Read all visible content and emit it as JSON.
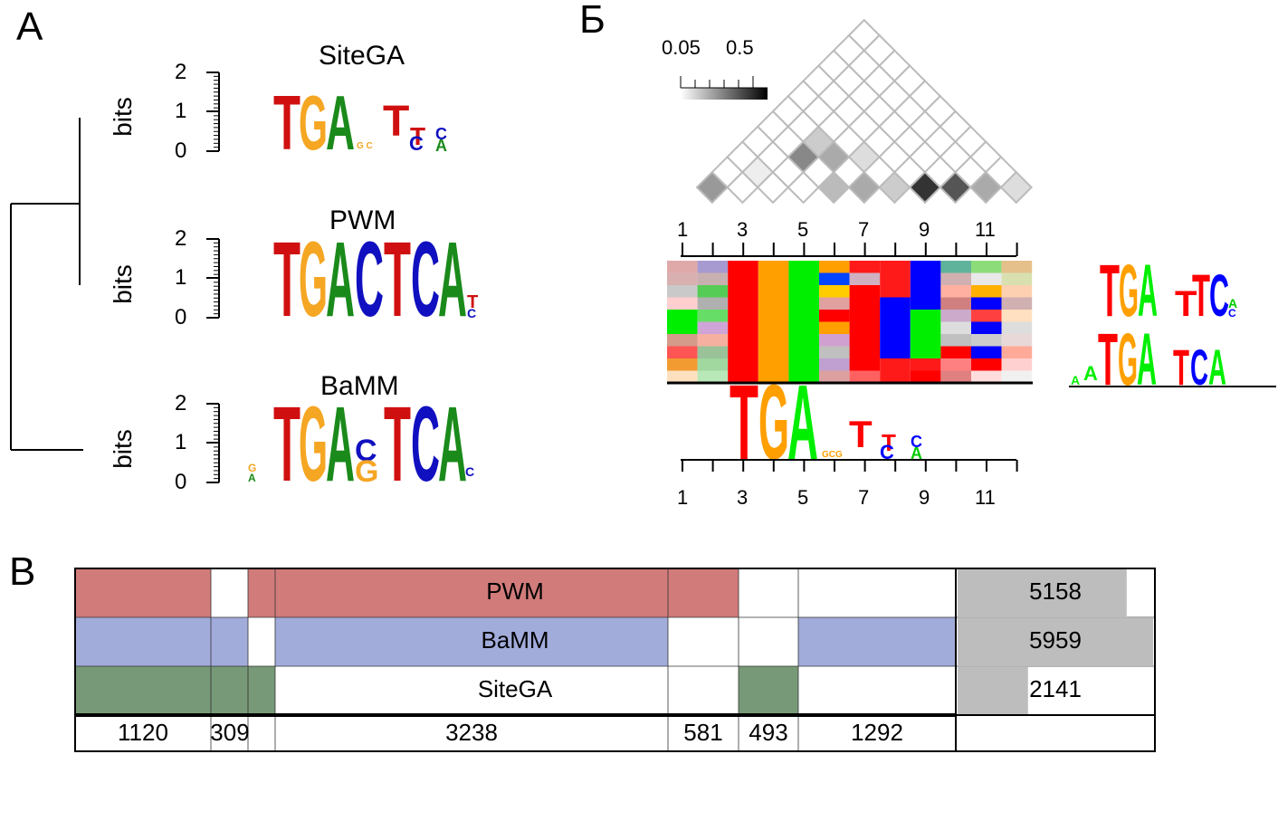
{
  "panels": {
    "a": "A",
    "b": "Б",
    "c": "В"
  },
  "logos": {
    "sitega": {
      "title": "SiteGA"
    },
    "pwm": {
      "title": "PWM"
    },
    "bamm": {
      "title": "BaMM"
    },
    "ylabel": "bits",
    "yticks": [
      "2",
      "1",
      "0"
    ]
  },
  "scale": {
    "low": "0.05",
    "high": "0.5"
  },
  "positions_top": [
    "1",
    "3",
    "5",
    "7",
    "9",
    "11"
  ],
  "positions_bottom": [
    "1",
    "3",
    "5",
    "7",
    "9",
    "11"
  ],
  "venn": {
    "rows": [
      {
        "label": "PWM",
        "total": "5158",
        "color": "#d17b7b",
        "fraction": 0.865
      },
      {
        "label": "BaMM",
        "total": "5959",
        "color": "#a2acdb",
        "fraction": 1.0
      },
      {
        "label": "SiteGA",
        "total": "2141",
        "color": "#779977",
        "fraction": 0.36
      }
    ],
    "counts": [
      "1120",
      "309",
      "3238",
      "581",
      "493",
      "1292"
    ]
  },
  "colors": {
    "A": "#1a8a1a",
    "C": "#1010c0",
    "G": "#f5a623",
    "T": "#d01010"
  }
}
